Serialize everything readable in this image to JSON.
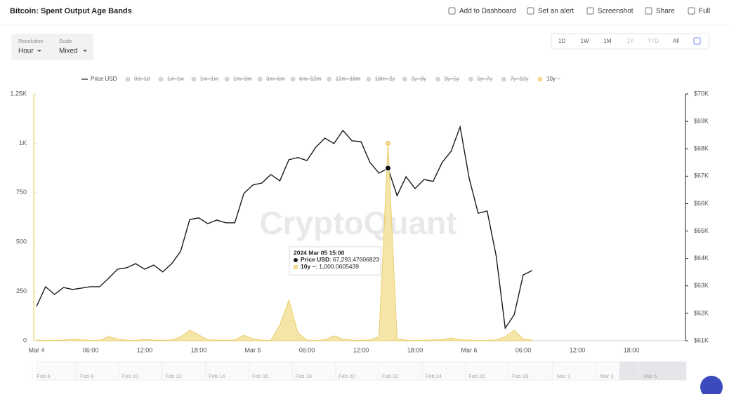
{
  "header": {
    "title": "Bitcoin: Spent Output Age Bands",
    "actions": [
      "Add to Dashboard",
      "Set an alert",
      "Screenshot",
      "Share",
      "Full"
    ]
  },
  "controls": {
    "resolution_label": "Resolution",
    "resolution": "Hour",
    "scale_label": "Scale",
    "scale": "Mixed",
    "ranges": [
      "1D",
      "1W",
      "1M",
      "1Y",
      "YTD",
      "All"
    ]
  },
  "watermark": "CryptoQuant",
  "chart_data": {
    "type": "line",
    "y_scale": "linear",
    "grid": false,
    "categories": [
      "Mar 4",
      null,
      null,
      null,
      null,
      null,
      "06:00",
      null,
      null,
      null,
      null,
      null,
      "12:00",
      null,
      null,
      null,
      null,
      null,
      "18:00",
      null,
      null,
      null,
      null,
      null,
      "Mar 5",
      null,
      null,
      null,
      null,
      null,
      "06:00",
      null,
      null,
      null,
      null,
      null,
      "12:00",
      null,
      null,
      null,
      null,
      null,
      "18:00",
      null,
      null,
      null,
      null,
      null,
      "Mar 6",
      null,
      null,
      null,
      null,
      null,
      "06:00",
      null,
      null,
      null,
      null,
      null,
      "12:00",
      null,
      null,
      null,
      null,
      null,
      "18:00",
      null,
      null,
      null,
      null,
      null
    ],
    "series": [
      {
        "name": "Price USD",
        "color": "#1a1a1a",
        "axis": "y2",
        "kind": "line",
        "values": [
          62250,
          62970,
          62690,
          62940,
          62870,
          62920,
          62970,
          62970,
          63280,
          63610,
          63660,
          63810,
          63610,
          63760,
          63510,
          63810,
          64270,
          65420,
          65480,
          65270,
          65400,
          65300,
          65300,
          66370,
          66680,
          66750,
          67060,
          66830,
          67600,
          67680,
          67570,
          68060,
          68390,
          68190,
          68670,
          68290,
          68260,
          67500,
          67110,
          67293.47606823,
          66290,
          66980,
          66550,
          66880,
          66810,
          67500,
          67910,
          68800,
          66930,
          65650,
          65730,
          64090,
          61460,
          61950,
          63400,
          63560,
          null,
          null,
          null,
          null,
          null,
          null,
          null,
          null,
          null,
          null,
          null,
          null,
          null,
          null,
          null,
          null
        ]
      },
      {
        "name": "10y ~",
        "color": "#f2dc8c",
        "axis": "y",
        "kind": "area",
        "values": [
          3,
          2,
          2,
          3,
          7,
          4,
          2,
          2,
          21,
          8,
          3,
          2,
          6,
          3,
          2,
          4,
          20,
          53,
          30,
          5,
          3,
          2,
          4,
          28,
          10,
          3,
          2,
          80,
          206,
          40,
          3,
          2,
          5,
          25,
          8,
          3,
          2,
          4,
          20,
          1000.0605439,
          10,
          3,
          2,
          2,
          4,
          6,
          14,
          5,
          3,
          2,
          2,
          4,
          20,
          53,
          8,
          3,
          null,
          null,
          null,
          null,
          null,
          null,
          null,
          null,
          null,
          null,
          null,
          null,
          null,
          null,
          null,
          null
        ]
      }
    ],
    "hidden_series": [
      "0d~1d",
      "1d~1w",
      "1w~1m",
      "1m~3m",
      "3m~6m",
      "6m~12m",
      "12m~18m",
      "18m~2y",
      "2y~3y",
      "3y~5y",
      "5y~7y",
      "7y~10y"
    ],
    "ylim": [
      0,
      1250
    ],
    "yticks": [
      0,
      250,
      500,
      750,
      {
        "value": 1000,
        "label": "1K"
      },
      {
        "value": 1250,
        "label": "1.25K"
      }
    ],
    "y2lim": [
      61000,
      70000
    ],
    "y2ticks": [
      {
        "value": 61000,
        "label": "$61K"
      },
      {
        "value": 62000,
        "label": "$62K"
      },
      {
        "value": 63000,
        "label": "$63K"
      },
      {
        "value": 64000,
        "label": "$64K"
      },
      {
        "value": 65000,
        "label": "$65K"
      },
      {
        "value": 66000,
        "label": "$66K"
      },
      {
        "value": 67000,
        "label": "$67K"
      },
      {
        "value": 68000,
        "label": "$68K"
      },
      {
        "value": 69000,
        "label": "$69K"
      },
      {
        "value": 70000,
        "label": "$70K"
      }
    ],
    "tooltip": {
      "title": "2024 Mar 05 15:00",
      "index": 39,
      "rows": [
        {
          "value": 67293.47606823,
          "label": "67,293.47606823"
        },
        {
          "value": 1000.0605439,
          "label": "1,000.0605439"
        }
      ]
    }
  },
  "navigator": {
    "labels": [
      "Feb 6",
      "Feb 8",
      "Feb 10",
      "Feb 12",
      "Feb 14",
      "Feb 16",
      "Feb 18",
      "Feb 20",
      "Feb 22",
      "Feb 24",
      "Feb 26",
      "Feb 28",
      "Mar 1",
      "Mar 3",
      "Mar 5"
    ]
  }
}
